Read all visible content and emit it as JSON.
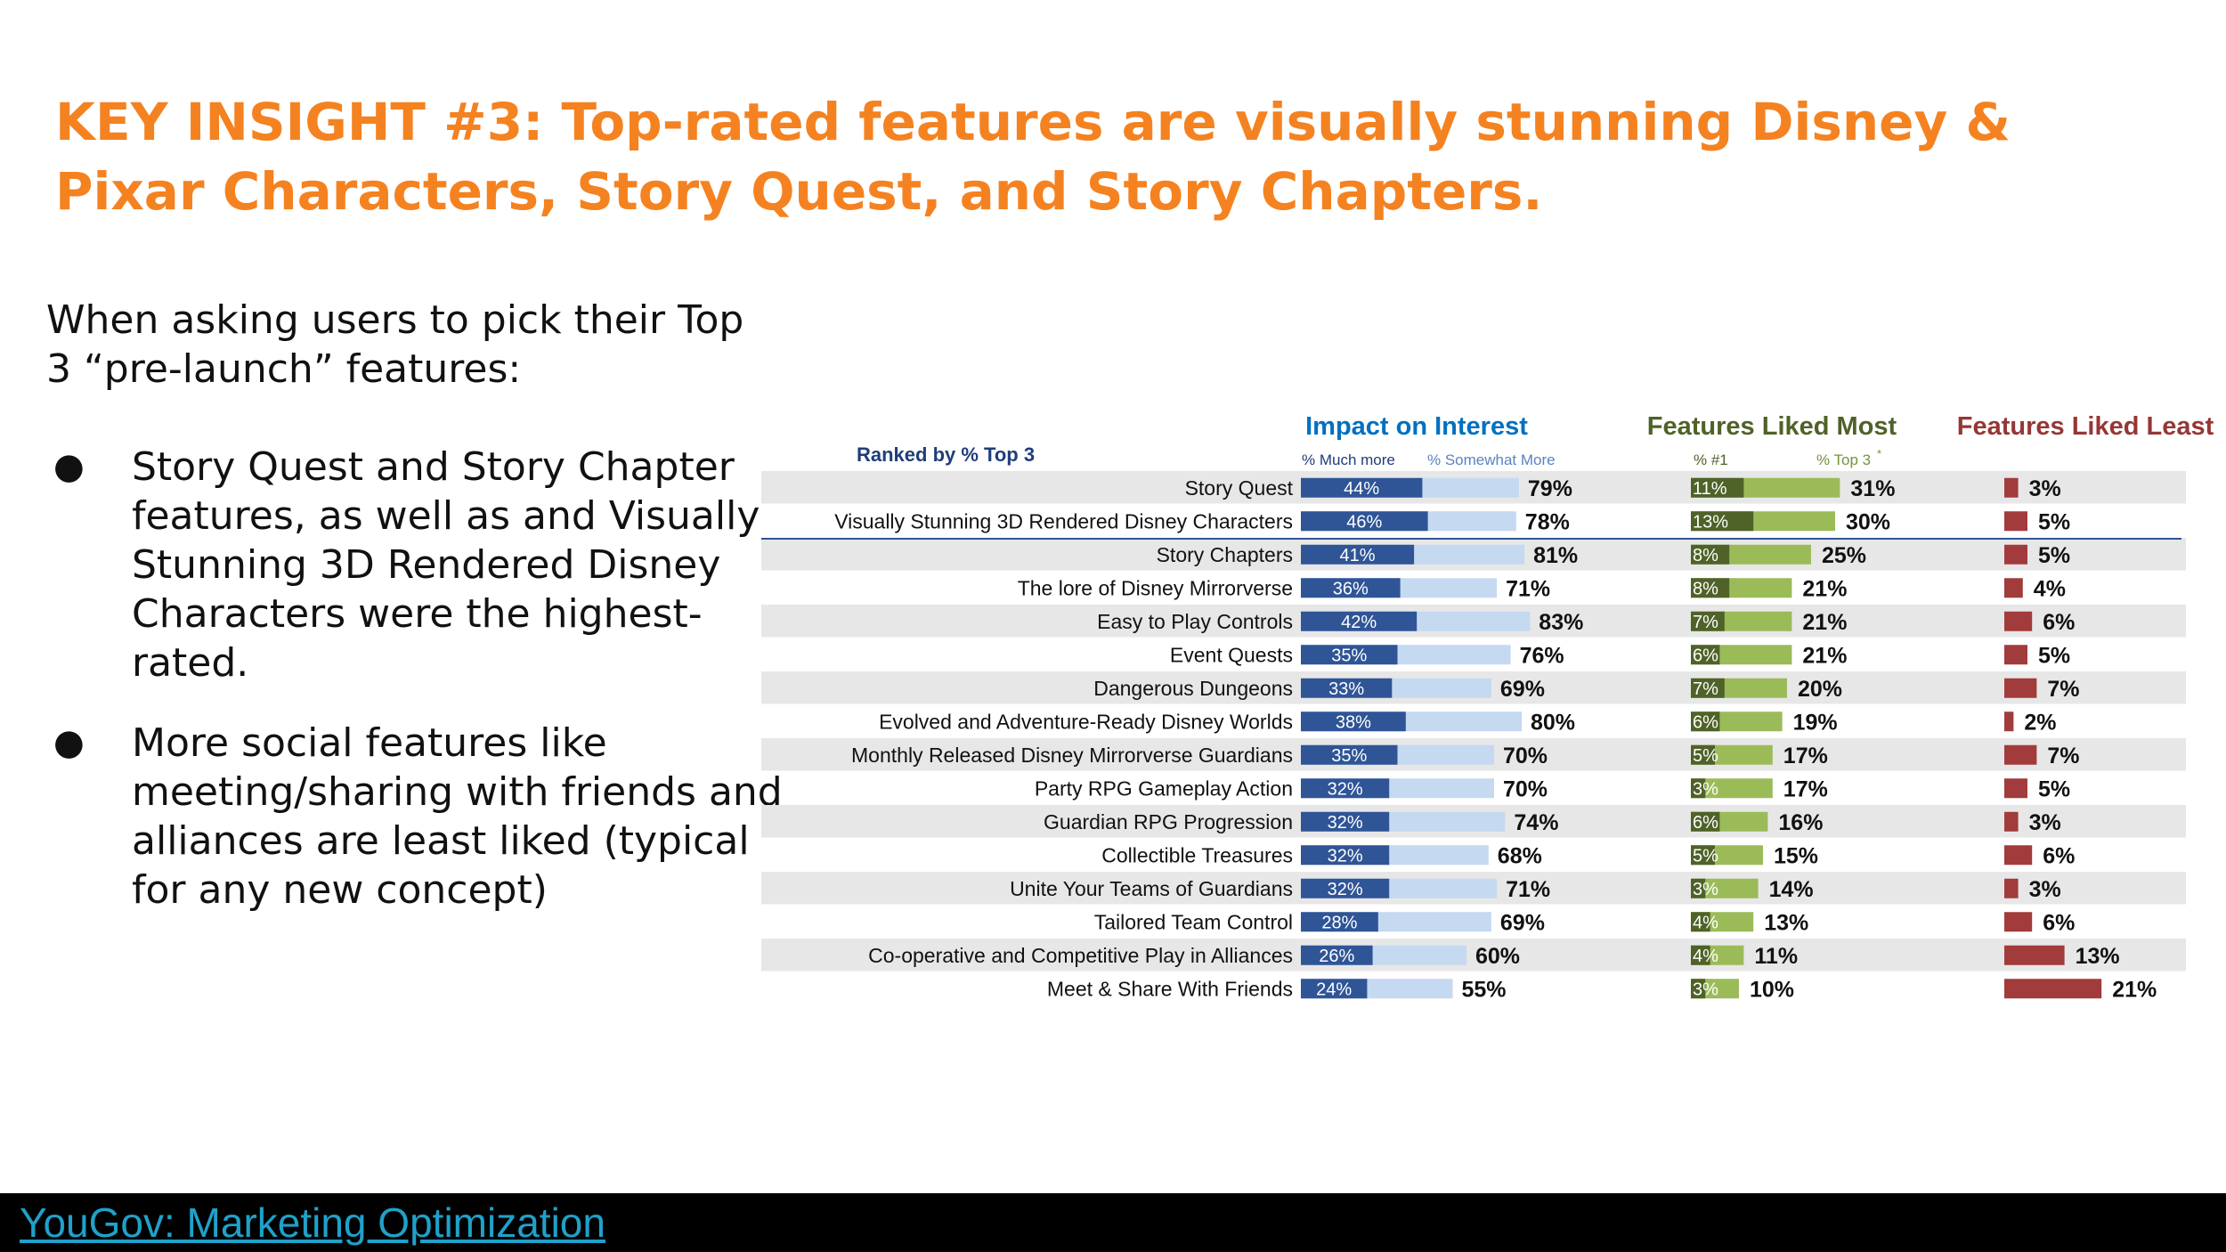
{
  "header": {
    "title": "KEY INSIGHT #3: Top-rated features are visually stunning Disney & Pixar Characters, Story Quest, and Story Chapters."
  },
  "body": {
    "intro": "When asking users to pick their Top 3 “pre-launch” features:",
    "bullets": [
      {
        "marker": "●",
        "text": "Story Quest and Story Chapter features, as well as and Visually Stunning 3D Rendered Disney Characters were the highest-rated."
      },
      {
        "marker": "●",
        "text": "More social features like meeting/sharing with friends and alliances are least liked (typical for any new concept)"
      }
    ]
  },
  "footer": {
    "link": "YouGov: Marketing Optimization"
  },
  "colors": {
    "title": "#f58220",
    "much_more": "#2f5597",
    "somewhat_more": "#c5d9f1",
    "pct1": "#4f6228",
    "top3": "#9bbb59",
    "least": "#a23b3b",
    "row_band": "#e7e7e7",
    "impact_header": "#0070c0",
    "liked_header": "#4f6228",
    "least_header": "#953735",
    "ranked": "#1f3d7a"
  },
  "chart_data": {
    "type": "bar",
    "ranked_label": "Ranked by % Top 3",
    "groups": {
      "impact": {
        "title": "Impact on Interest",
        "legend": [
          "% Much more",
          "% Somewhat More"
        ]
      },
      "liked": {
        "title": "Features Liked Most",
        "legend": [
          "% #1",
          "% Top 3"
        ],
        "legend_mark": "*"
      },
      "least": {
        "title": "Features Liked Least"
      }
    },
    "categories": [
      "Story Quest",
      "Visually Stunning 3D Rendered Disney Characters",
      "Story Chapters",
      "The lore of Disney Mirrorverse",
      "Easy to Play Controls",
      "Event Quests",
      "Dangerous Dungeons",
      "Evolved and Adventure-Ready Disney Worlds",
      "Monthly Released Disney Mirrorverse Guardians",
      "Party RPG Gameplay Action",
      "Guardian RPG Progression",
      "Collectible Treasures",
      "Unite Your Teams of Guardians",
      "Tailored Team Control",
      "Co-operative and Competitive Play in Alliances",
      "Meet & Share With Friends"
    ],
    "series": [
      {
        "name": "% Much more",
        "values": [
          44,
          46,
          41,
          36,
          42,
          35,
          33,
          38,
          35,
          32,
          32,
          32,
          32,
          28,
          26,
          24
        ]
      },
      {
        "name": "% Much/Somewhat more total",
        "values": [
          79,
          78,
          81,
          71,
          83,
          76,
          69,
          80,
          70,
          70,
          74,
          68,
          71,
          69,
          60,
          55
        ]
      },
      {
        "name": "% #1",
        "values": [
          11,
          13,
          8,
          8,
          7,
          6,
          7,
          6,
          5,
          3,
          6,
          5,
          3,
          4,
          4,
          3
        ]
      },
      {
        "name": "% Top 3",
        "values": [
          31,
          30,
          25,
          21,
          21,
          21,
          20,
          19,
          17,
          17,
          16,
          15,
          14,
          13,
          11,
          10
        ]
      },
      {
        "name": "Features Liked Least",
        "values": [
          3,
          5,
          5,
          4,
          6,
          5,
          7,
          2,
          7,
          5,
          3,
          6,
          3,
          6,
          13,
          21
        ]
      }
    ],
    "ylim": [
      0,
      100
    ]
  }
}
